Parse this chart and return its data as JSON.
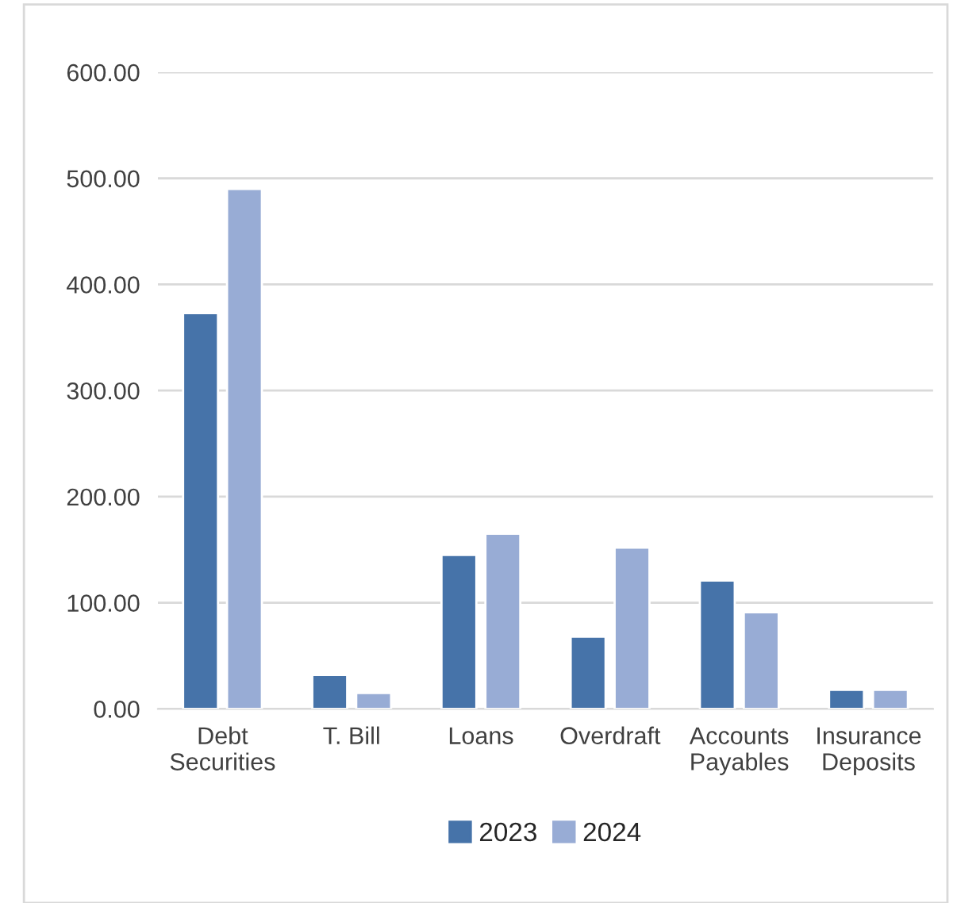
{
  "chart_data": {
    "type": "bar",
    "categories": [
      "Debt\nSecurities",
      "T. Bill",
      "Loans",
      "Overdraft",
      "Accounts\nPayables",
      "Insurance\nDeposits"
    ],
    "series": [
      {
        "name": "2023",
        "color": "#4673a9",
        "values": [
          373,
          32,
          145,
          68,
          121,
          18
        ]
      },
      {
        "name": "2024",
        "color": "#98acd5",
        "values": [
          490,
          15,
          165,
          152,
          91,
          18
        ]
      }
    ],
    "ylim": [
      0,
      600
    ],
    "yticks": [
      {
        "value": 0,
        "label": "0.00"
      },
      {
        "value": 100,
        "label": "100.00"
      },
      {
        "value": 200,
        "label": "200.00"
      },
      {
        "value": 300,
        "label": "300.00"
      },
      {
        "value": 400,
        "label": "400.00"
      },
      {
        "value": 500,
        "label": "500.00"
      },
      {
        "value": 600,
        "label": "600.00"
      }
    ],
    "grid": "y",
    "legend": "bottom"
  }
}
